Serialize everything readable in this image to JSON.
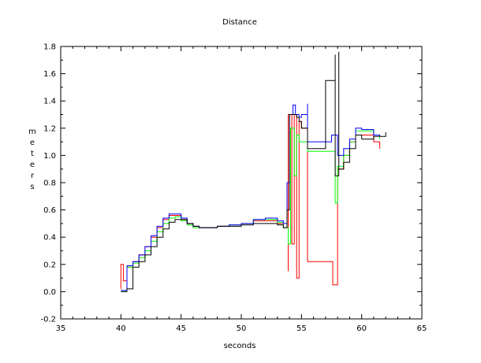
{
  "chart_data": {
    "type": "line",
    "title": "Distance",
    "xlabel": "seconds",
    "ylabel": "m e t e r s",
    "xlim": [
      35,
      65
    ],
    "ylim": [
      -0.2,
      1.8
    ],
    "x_ticks": [
      "35",
      "40",
      "45",
      "50",
      "55",
      "60",
      "65"
    ],
    "y_ticks": [
      "-0.2",
      "0.0",
      "0.2",
      "0.4",
      "0.6",
      "0.8",
      "1.0",
      "1.2",
      "1.4",
      "1.6",
      "1.8"
    ],
    "grid": false,
    "series": [
      {
        "color": "#ff0000",
        "x": [
          40.0,
          40.0,
          40.2,
          40.2,
          40.5,
          41.0,
          41.5,
          42.0,
          42.5,
          43.0,
          43.5,
          44.0,
          44.5,
          45.0,
          45.5,
          46.0,
          46.5,
          47.0,
          48.0,
          49.0,
          50.0,
          51.0,
          52.0,
          53.0,
          53.5,
          53.9,
          53.9,
          54.2,
          54.4,
          54.6,
          54.8,
          55.0,
          55.5,
          55.5,
          57.6,
          57.6,
          58.0,
          58.5,
          59.0,
          59.5,
          60.0,
          61.0,
          61.5
        ],
        "y": [
          0.02,
          0.2,
          0.2,
          0.08,
          0.18,
          0.22,
          0.27,
          0.33,
          0.4,
          0.47,
          0.53,
          0.56,
          0.56,
          0.53,
          0.5,
          0.48,
          0.47,
          0.47,
          0.48,
          0.49,
          0.5,
          0.52,
          0.52,
          0.5,
          0.47,
          0.15,
          1.3,
          0.35,
          1.3,
          0.1,
          1.25,
          1.2,
          1.1,
          0.22,
          0.22,
          0.05,
          0.9,
          1.0,
          1.1,
          1.15,
          1.15,
          1.1,
          1.05
        ]
      },
      {
        "color": "#00ff00",
        "x": [
          40.0,
          40.5,
          41.0,
          41.5,
          42.0,
          42.5,
          43.0,
          43.5,
          44.0,
          44.5,
          45.0,
          45.5,
          46.0,
          46.5,
          47.0,
          48.0,
          49.0,
          50.0,
          51.0,
          52.0,
          53.0,
          53.5,
          53.9,
          54.1,
          54.4,
          54.6,
          54.8,
          55.0,
          55.5,
          57.6,
          57.8,
          58.0,
          58.5,
          59.0,
          59.5,
          60.0,
          61.0,
          61.5
        ],
        "y": [
          0.0,
          0.18,
          0.21,
          0.25,
          0.3,
          0.37,
          0.44,
          0.5,
          0.54,
          0.55,
          0.52,
          0.49,
          0.47,
          0.47,
          0.47,
          0.48,
          0.49,
          0.5,
          0.53,
          0.53,
          0.51,
          0.47,
          0.35,
          1.2,
          0.85,
          1.15,
          1.1,
          1.1,
          1.03,
          1.03,
          0.65,
          0.92,
          1.0,
          1.1,
          1.18,
          1.18,
          1.15,
          1.12
        ]
      },
      {
        "color": "#0000ff",
        "x": [
          40.0,
          40.5,
          41.0,
          41.5,
          42.0,
          42.5,
          43.0,
          43.5,
          44.0,
          44.5,
          45.0,
          45.5,
          46.0,
          46.5,
          47.0,
          48.0,
          49.0,
          50.0,
          51.0,
          52.0,
          53.0,
          53.5,
          53.8,
          54.0,
          54.3,
          54.5,
          54.8,
          55.0,
          55.5,
          55.5,
          57.5,
          58.0,
          58.5,
          59.0,
          59.5,
          60.0,
          61.0,
          61.5
        ],
        "y": [
          0.01,
          0.19,
          0.22,
          0.27,
          0.33,
          0.41,
          0.48,
          0.54,
          0.57,
          0.57,
          0.54,
          0.5,
          0.48,
          0.47,
          0.47,
          0.48,
          0.49,
          0.5,
          0.53,
          0.54,
          0.52,
          0.5,
          0.8,
          1.3,
          1.37,
          1.3,
          1.28,
          1.3,
          1.38,
          1.1,
          1.15,
          1.0,
          1.05,
          1.12,
          1.2,
          1.19,
          1.15,
          1.14
        ]
      },
      {
        "color": "#000000",
        "x": [
          40.0,
          40.5,
          41.0,
          41.0,
          41.5,
          42.0,
          42.5,
          43.0,
          43.5,
          44.0,
          44.5,
          45.0,
          45.5,
          46.0,
          46.5,
          47.0,
          48.0,
          49.0,
          50.0,
          51.0,
          52.0,
          53.0,
          53.5,
          53.8,
          54.0,
          54.0,
          54.2,
          54.4,
          54.6,
          54.8,
          55.0,
          55.5,
          57.0,
          57.8,
          57.8,
          58.1,
          58.1,
          58.5,
          59.0,
          59.5,
          60.0,
          61.0,
          62.0
        ],
        "y": [
          0.0,
          0.02,
          0.04,
          0.18,
          0.22,
          0.27,
          0.33,
          0.4,
          0.46,
          0.51,
          0.53,
          0.53,
          0.5,
          0.48,
          0.47,
          0.47,
          0.48,
          0.48,
          0.49,
          0.5,
          0.5,
          0.49,
          0.47,
          0.6,
          0.8,
          1.3,
          1.3,
          1.3,
          1.28,
          1.25,
          1.2,
          1.05,
          1.55,
          1.74,
          0.85,
          1.76,
          0.9,
          0.95,
          1.05,
          1.15,
          1.12,
          1.14,
          1.17
        ]
      }
    ]
  }
}
